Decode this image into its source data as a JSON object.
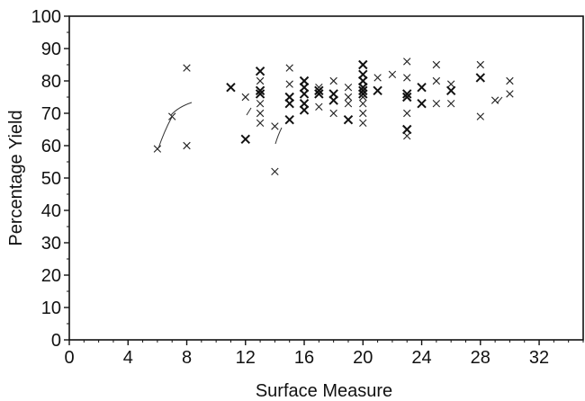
{
  "chart_data": {
    "type": "scatter",
    "xlabel": "Surface Measure",
    "ylabel": "Percentage Yield",
    "xlim": [
      0,
      35
    ],
    "ylim": [
      0,
      100
    ],
    "xticks": [
      0,
      4,
      8,
      12,
      16,
      20,
      24,
      28,
      32
    ],
    "yticks": [
      0,
      10,
      20,
      30,
      40,
      50,
      60,
      70,
      80,
      90,
      100
    ],
    "marker": "x",
    "grid": false,
    "points": [
      {
        "x": 6,
        "y": 59
      },
      {
        "x": 7,
        "y": 69
      },
      {
        "x": 8,
        "y": 84
      },
      {
        "x": 8,
        "y": 60
      },
      {
        "x": 11,
        "y": 78,
        "bold": true
      },
      {
        "x": 12,
        "y": 62,
        "bold": true
      },
      {
        "x": 12,
        "y": 75
      },
      {
        "x": 13,
        "y": 83,
        "bold": true
      },
      {
        "x": 13,
        "y": 80
      },
      {
        "x": 13,
        "y": 77,
        "bold": true
      },
      {
        "x": 13,
        "y": 76,
        "bold": true
      },
      {
        "x": 13,
        "y": 73
      },
      {
        "x": 13,
        "y": 70
      },
      {
        "x": 13,
        "y": 67
      },
      {
        "x": 14,
        "y": 52
      },
      {
        "x": 14,
        "y": 66
      },
      {
        "x": 15,
        "y": 84
      },
      {
        "x": 15,
        "y": 75,
        "bold": true
      },
      {
        "x": 15,
        "y": 73,
        "bold": true
      },
      {
        "x": 15,
        "y": 68,
        "bold": true
      },
      {
        "x": 15,
        "y": 79
      },
      {
        "x": 16,
        "y": 80,
        "bold": true
      },
      {
        "x": 16,
        "y": 78,
        "bold": true
      },
      {
        "x": 16,
        "y": 76,
        "bold": true
      },
      {
        "x": 16,
        "y": 73,
        "bold": true
      },
      {
        "x": 16,
        "y": 71,
        "bold": true
      },
      {
        "x": 17,
        "y": 78
      },
      {
        "x": 17,
        "y": 77,
        "bold": true
      },
      {
        "x": 17,
        "y": 76,
        "bold": true
      },
      {
        "x": 17,
        "y": 72
      },
      {
        "x": 18,
        "y": 80
      },
      {
        "x": 18,
        "y": 76,
        "bold": true
      },
      {
        "x": 18,
        "y": 74,
        "bold": true
      },
      {
        "x": 18,
        "y": 70
      },
      {
        "x": 19,
        "y": 78
      },
      {
        "x": 19,
        "y": 75
      },
      {
        "x": 19,
        "y": 68,
        "bold": true
      },
      {
        "x": 19,
        "y": 73
      },
      {
        "x": 20,
        "y": 85,
        "bold": true
      },
      {
        "x": 20,
        "y": 82,
        "bold": true
      },
      {
        "x": 20,
        "y": 80,
        "bold": true
      },
      {
        "x": 20,
        "y": 78,
        "bold": true
      },
      {
        "x": 20,
        "y": 77,
        "bold": true
      },
      {
        "x": 20,
        "y": 76,
        "bold": true
      },
      {
        "x": 20,
        "y": 75
      },
      {
        "x": 20,
        "y": 73
      },
      {
        "x": 20,
        "y": 70
      },
      {
        "x": 20,
        "y": 67
      },
      {
        "x": 21,
        "y": 77,
        "bold": true
      },
      {
        "x": 21,
        "y": 81
      },
      {
        "x": 22,
        "y": 82
      },
      {
        "x": 23,
        "y": 86
      },
      {
        "x": 23,
        "y": 81
      },
      {
        "x": 23,
        "y": 76,
        "bold": true
      },
      {
        "x": 23,
        "y": 75,
        "bold": true
      },
      {
        "x": 23,
        "y": 70
      },
      {
        "x": 23,
        "y": 65,
        "bold": true
      },
      {
        "x": 23,
        "y": 63
      },
      {
        "x": 24,
        "y": 78,
        "bold": true
      },
      {
        "x": 24,
        "y": 73,
        "bold": true
      },
      {
        "x": 25,
        "y": 85
      },
      {
        "x": 25,
        "y": 80
      },
      {
        "x": 25,
        "y": 73
      },
      {
        "x": 26,
        "y": 79
      },
      {
        "x": 26,
        "y": 77,
        "bold": true
      },
      {
        "x": 26,
        "y": 73
      },
      {
        "x": 28,
        "y": 85
      },
      {
        "x": 28,
        "y": 81,
        "bold": true
      },
      {
        "x": 28,
        "y": 69
      },
      {
        "x": 29,
        "y": 74
      },
      {
        "x": 30,
        "y": 80
      },
      {
        "x": 30,
        "y": 76
      }
    ]
  }
}
